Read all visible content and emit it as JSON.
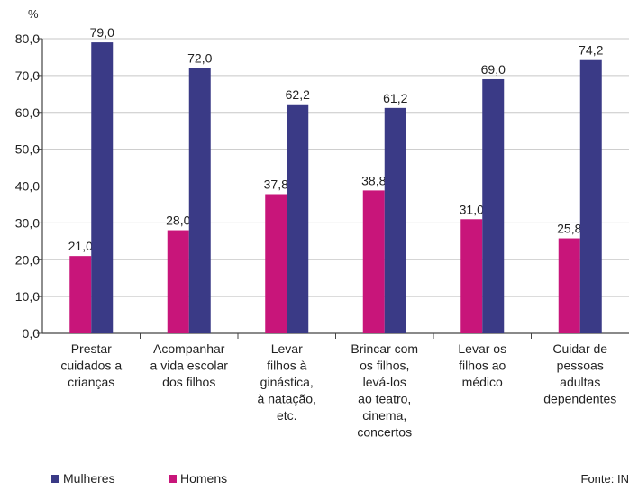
{
  "chart_data": {
    "type": "bar",
    "ylabel": "%",
    "ylim": [
      0,
      80
    ],
    "yticks": [
      "0,0",
      "10,0",
      "20,0",
      "30,0",
      "40,0",
      "50,0",
      "60,0",
      "70,0",
      "80,0"
    ],
    "grid": true,
    "legend_placement": "bottom-left",
    "categories": [
      [
        "Prestar",
        "cuidados a",
        "crianças"
      ],
      [
        "Acompanhar",
        "a vida escolar",
        "dos filhos"
      ],
      [
        "Levar",
        "filhos à",
        "ginástica,",
        "à natação,",
        "etc."
      ],
      [
        "Brincar com",
        "os filhos,",
        "levá-los",
        "ao teatro,",
        "cinema,",
        "concertos"
      ],
      [
        "Levar os",
        "filhos ao",
        "médico"
      ],
      [
        "Cuidar de",
        "pessoas",
        "adultas",
        "dependentes"
      ]
    ],
    "series": [
      {
        "name": "Homens",
        "color": "#c8157a",
        "values": [
          21.0,
          28.0,
          37.8,
          38.8,
          31.0,
          25.8
        ],
        "labels": [
          "21,0",
          "28,0",
          "37,8",
          "38,8",
          "31,0",
          "25,8"
        ]
      },
      {
        "name": "Mulheres",
        "color": "#3a3a86",
        "values": [
          79.0,
          72.0,
          62.2,
          61.2,
          69.0,
          74.2
        ],
        "labels": [
          "79,0",
          "72,0",
          "62,2",
          "61,2",
          "69,0",
          "74,2"
        ]
      }
    ],
    "legend_order": [
      "Mulheres",
      "Homens"
    ],
    "source": {
      "label": "Fonte:",
      "text": "IN"
    }
  }
}
